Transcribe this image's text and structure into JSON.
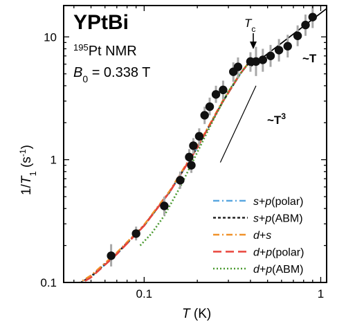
{
  "chart_data": {
    "type": "scatter",
    "x_scale": "log",
    "y_scale": "log",
    "xlim": [
      0.035,
      1.08
    ],
    "ylim": [
      0.1,
      18
    ],
    "title": "YPtBi",
    "info_line1_sup": "195",
    "info_line1_rest": "Pt NMR",
    "info_line2_base": "B",
    "info_line2_sub": "0",
    "info_line2_rest": " = 0.338 T",
    "xlabel_italic": "T",
    "xlabel_rest": " (K)",
    "ylabel_pre": "1/",
    "ylabel_italic": "T",
    "ylabel_sub": "1",
    "ylabel_unit": " (s",
    "ylabel_unit_sup": "-1",
    "ylabel_close": ")",
    "x_ticks": [
      {
        "value": 0.1,
        "label": "0.1"
      },
      {
        "value": 1,
        "label": "1"
      }
    ],
    "y_ticks": [
      {
        "value": 0.1,
        "label": "0.1"
      },
      {
        "value": 1,
        "label": "1"
      },
      {
        "value": 10,
        "label": "10"
      }
    ],
    "annotations": {
      "tc_base": "T",
      "tc_sub": "c",
      "tc_value": 0.4,
      "linear_text": "~T",
      "cubic_text": "~T",
      "cubic_sup": "3"
    },
    "points": [
      {
        "x": 0.065,
        "y": 0.165,
        "err": [
          0.135,
          0.205
        ]
      },
      {
        "x": 0.09,
        "y": 0.25,
        "err": [
          0.22,
          0.285
        ]
      },
      {
        "x": 0.13,
        "y": 0.42,
        "err": [
          0.35,
          0.5
        ]
      },
      {
        "x": 0.16,
        "y": 0.68,
        "err": [
          0.58,
          0.8
        ]
      },
      {
        "x": 0.18,
        "y": 1.05,
        "err": [
          0.9,
          1.22
        ]
      },
      {
        "x": 0.185,
        "y": 0.9,
        "err": [
          0.78,
          1.05
        ]
      },
      {
        "x": 0.19,
        "y": 1.3,
        "err": [
          1.12,
          1.5
        ]
      },
      {
        "x": 0.205,
        "y": 1.55,
        "err": [
          1.3,
          1.8
        ]
      },
      {
        "x": 0.22,
        "y": 2.3,
        "err": [
          1.95,
          2.7
        ]
      },
      {
        "x": 0.235,
        "y": 2.7,
        "err": [
          2.3,
          3.2
        ]
      },
      {
        "x": 0.255,
        "y": 3.4,
        "err": [
          2.9,
          4.0
        ]
      },
      {
        "x": 0.28,
        "y": 3.7,
        "err": [
          3.1,
          4.4
        ]
      },
      {
        "x": 0.32,
        "y": 5.2,
        "err": [
          4.3,
          6.2
        ]
      },
      {
        "x": 0.34,
        "y": 5.7,
        "err": [
          4.6,
          6.8
        ]
      },
      {
        "x": 0.4,
        "y": 6.3,
        "err": [
          5.2,
          7.5
        ]
      },
      {
        "x": 0.43,
        "y": 6.3,
        "err": [
          4.8,
          8.3
        ]
      },
      {
        "x": 0.47,
        "y": 6.5,
        "err": [
          5.2,
          8.0
        ]
      },
      {
        "x": 0.52,
        "y": 7.0,
        "err": [
          5.7,
          8.6
        ]
      },
      {
        "x": 0.58,
        "y": 7.8,
        "err": [
          6.3,
          9.6
        ]
      },
      {
        "x": 0.65,
        "y": 8.4,
        "err": [
          6.8,
          10.4
        ]
      },
      {
        "x": 0.74,
        "y": 10.2,
        "err": [
          8.4,
          12.4
        ]
      },
      {
        "x": 0.82,
        "y": 12.5,
        "err": [
          10.2,
          15.2
        ]
      },
      {
        "x": 0.9,
        "y": 14.5,
        "err": [
          11.8,
          17.8
        ]
      }
    ],
    "guide_linear": {
      "x": [
        0.4,
        1.08
      ],
      "y": [
        5.7,
        17.0
      ]
    },
    "guide_cubic": {
      "x": [
        0.27,
        0.43
      ],
      "y": [
        0.95,
        4.0
      ]
    },
    "series": [
      {
        "name": "s+p(polar)",
        "style": "dashdot",
        "color": "#5aa7e0",
        "x": [
          0.035,
          0.05,
          0.07,
          0.1,
          0.14,
          0.2,
          0.28,
          0.35,
          0.4
        ],
        "y": [
          0.08,
          0.11,
          0.17,
          0.29,
          0.55,
          1.25,
          3.0,
          5.0,
          6.4
        ]
      },
      {
        "name": "s+p(ABM)",
        "style": "dotted-dense",
        "color": "#222222",
        "x": [
          0.035,
          0.05,
          0.07,
          0.1,
          0.14,
          0.2,
          0.28,
          0.35,
          0.4
        ],
        "y": [
          0.082,
          0.112,
          0.172,
          0.292,
          0.55,
          1.26,
          3.0,
          5.0,
          6.4
        ]
      },
      {
        "name": "d+s",
        "style": "dashdot",
        "color": "#f0922a",
        "x": [
          0.035,
          0.05,
          0.07,
          0.1,
          0.14,
          0.2,
          0.28,
          0.35,
          0.4
        ],
        "y": [
          0.083,
          0.114,
          0.175,
          0.295,
          0.56,
          1.28,
          3.05,
          5.05,
          6.4
        ]
      },
      {
        "name": "d+p(polar)",
        "style": "dash",
        "color": "#e8443a",
        "x": [
          0.035,
          0.05,
          0.07,
          0.1,
          0.14,
          0.2,
          0.28,
          0.35,
          0.4
        ],
        "y": [
          0.081,
          0.11,
          0.17,
          0.29,
          0.55,
          1.25,
          3.0,
          5.0,
          6.4
        ]
      },
      {
        "name": "d+p(ABM)",
        "style": "dotted",
        "color": "#4a9a30",
        "x": [
          0.095,
          0.11,
          0.13,
          0.16,
          0.2,
          0.25,
          0.3,
          0.35,
          0.4
        ],
        "y": [
          0.2,
          0.25,
          0.35,
          0.6,
          1.15,
          2.2,
          3.6,
          5.0,
          6.4
        ]
      }
    ]
  }
}
